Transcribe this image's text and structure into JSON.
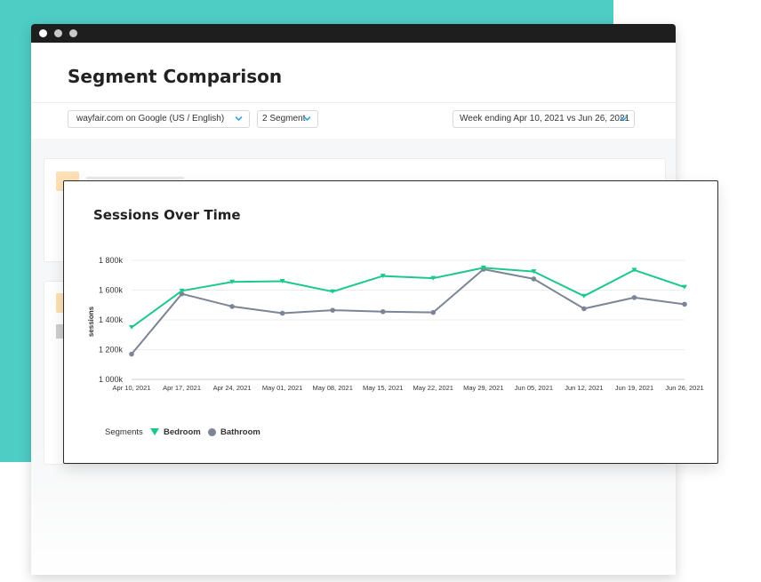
{
  "page": {
    "title": "Segment Comparison"
  },
  "filters": {
    "site": "wayfair.com on Google (US / English)",
    "segments": "2 Segment",
    "date_range": "Week ending Apr 10, 2021 vs Jun 26, 2021"
  },
  "card": {
    "title": "Sessions Over Time"
  },
  "chart_data": {
    "type": "line",
    "x": [
      "Apr 10, 2021",
      "Apr 17, 2021",
      "Apr 24, 2021",
      "May 01, 2021",
      "May 08, 2021",
      "May 15, 2021",
      "May 22, 2021",
      "May 29, 2021",
      "Jun 05, 2021",
      "Jun 12, 2021",
      "Jun 19, 2021",
      "Jun 26, 2021"
    ],
    "yticks": [
      "1 000k",
      "1 200k",
      "1 400k",
      "1 600k",
      "1 800k"
    ],
    "ytick_values": [
      1000000,
      1200000,
      1400000,
      1600000,
      1800000
    ],
    "ylim": [
      1000000,
      1800000
    ],
    "ylabel": "sessions",
    "xlabel": "",
    "grid": true,
    "series": [
      {
        "name": "Bedroom",
        "color": "#1ec88c",
        "marker": "triangle-down",
        "values": [
          1350000,
          1595000,
          1655000,
          1660000,
          1590000,
          1695000,
          1680000,
          1750000,
          1725000,
          1560000,
          1735000,
          1620000
        ]
      },
      {
        "name": "Bathroom",
        "color": "#7b8596",
        "marker": "circle",
        "values": [
          1170000,
          1575000,
          1490000,
          1445000,
          1465000,
          1455000,
          1450000,
          1740000,
          1675000,
          1475000,
          1550000,
          1505000
        ]
      }
    ],
    "legend": {
      "label": "Segments",
      "position": "bottom-left"
    }
  }
}
